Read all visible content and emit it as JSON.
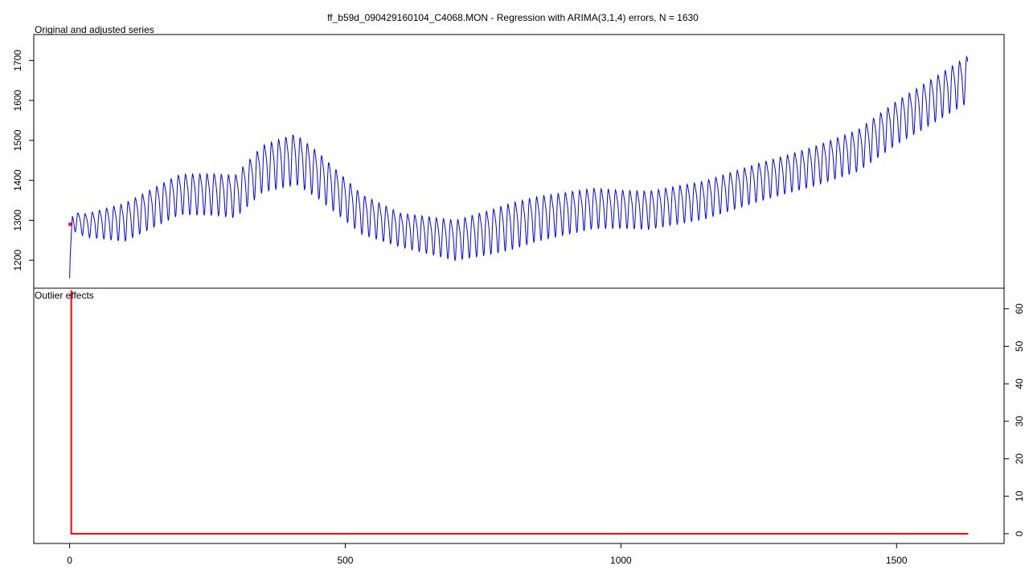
{
  "title": "ff_b59d_090429160104_C4068.MON - Regression with ARIMA(3,1,4) errors, N = 1630",
  "colors": {
    "series": "#0000ff",
    "outlier": "#ff0000",
    "axis": "#000000"
  },
  "chart_data": [
    {
      "type": "line",
      "label": "Original and adjusted series",
      "n": 1630,
      "x_ticks": [
        0,
        500,
        1000,
        1500
      ],
      "y_ticks": [
        1200,
        1300,
        1400,
        1500,
        1600,
        1700
      ],
      "ylim": [
        1130,
        1765
      ],
      "xlim": [
        -65,
        1695
      ],
      "y_axis_side": "left",
      "series": [
        {
          "color": "#0000ff",
          "samples": 1630,
          "start_value": 1155,
          "oscillation_period": 13,
          "trend": [
            [
              0,
              1160
            ],
            [
              5,
              1300
            ],
            [
              30,
              1290
            ],
            [
              100,
              1300
            ],
            [
              200,
              1370
            ],
            [
              260,
              1370
            ],
            [
              300,
              1365
            ],
            [
              350,
              1435
            ],
            [
              410,
              1460
            ],
            [
              450,
              1420
            ],
            [
              530,
              1320
            ],
            [
              600,
              1280
            ],
            [
              700,
              1255
            ],
            [
              760,
              1275
            ],
            [
              850,
              1310
            ],
            [
              950,
              1335
            ],
            [
              1050,
              1330
            ],
            [
              1150,
              1355
            ],
            [
              1250,
              1400
            ],
            [
              1350,
              1440
            ],
            [
              1430,
              1480
            ],
            [
              1500,
              1550
            ],
            [
              1560,
              1600
            ],
            [
              1630,
              1660
            ]
          ],
          "amplitude": [
            [
              0,
              20
            ],
            [
              100,
              45
            ],
            [
              300,
              50
            ],
            [
              400,
              60
            ],
            [
              600,
              40
            ],
            [
              800,
              55
            ],
            [
              1000,
              45
            ],
            [
              1300,
              45
            ],
            [
              1630,
              55
            ]
          ]
        }
      ],
      "markers": [
        {
          "x": 1,
          "y": 1290,
          "color": "#ff0000"
        }
      ]
    },
    {
      "type": "line",
      "label": "Outlier effects",
      "x_ticks": [
        0,
        500,
        1000,
        1500
      ],
      "y_ticks": [
        0,
        10,
        20,
        30,
        40,
        50,
        60
      ],
      "ylim": [
        -2.6,
        65.5
      ],
      "xlim": [
        -65,
        1695
      ],
      "y_axis_side": "right",
      "series": [
        {
          "color": "#ff0000",
          "points": [
            [
              3,
              0
            ],
            [
              3,
              64.9
            ],
            [
              3,
              0
            ],
            [
              1630,
              0
            ]
          ]
        }
      ]
    }
  ]
}
